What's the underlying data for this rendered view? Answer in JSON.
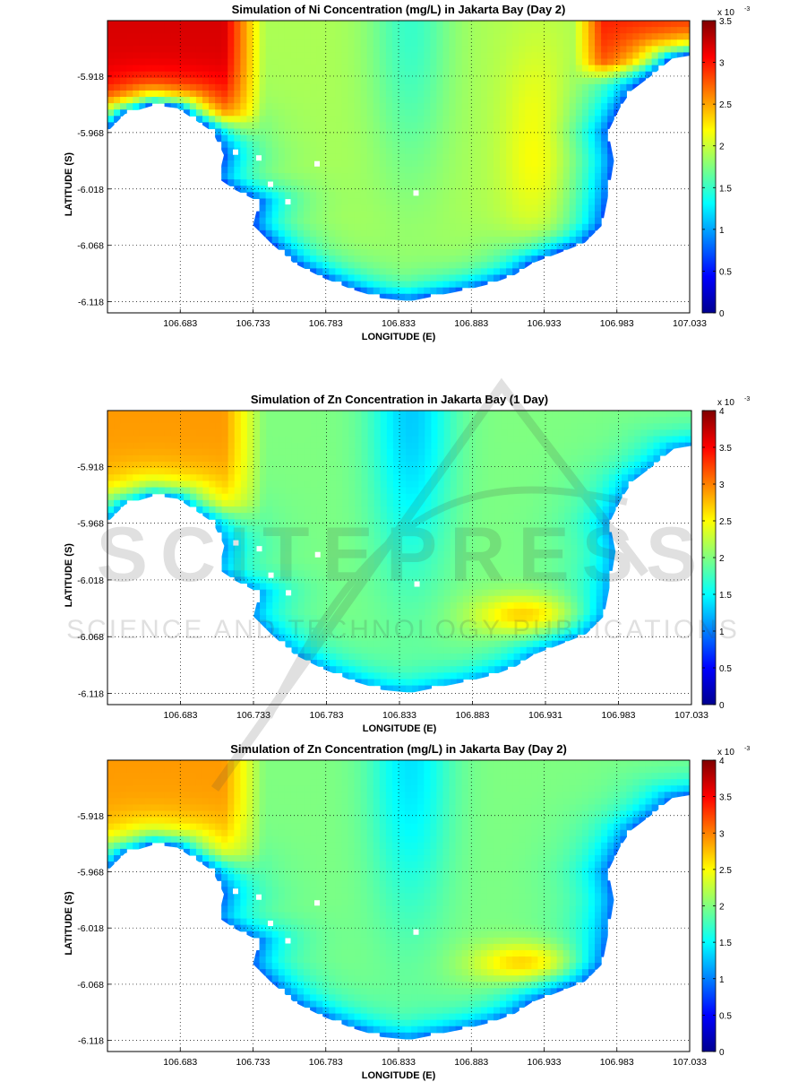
{
  "watermark": {
    "title": "SCITEPRESS",
    "subtitle": "SCIENCE AND TECHNOLOGY PUBLICATIONS"
  },
  "colors": {
    "jet": [
      "#00008f",
      "#0000ff",
      "#0080ff",
      "#00ffff",
      "#80ff80",
      "#ffff00",
      "#ff8000",
      "#ff0000",
      "#800000"
    ],
    "land": "#ffffff",
    "grid": "#000000"
  },
  "chart_data": [
    {
      "type": "heatmap",
      "title": "Simulation of Ni Concentration (mg/L) in Jakarta Bay (Day 2)",
      "xlabel": "LONGITUDE (E)",
      "ylabel": "LATITUDE (S)",
      "xticks": [
        "106.683",
        "106.733",
        "106.783",
        "106.833",
        "106.883",
        "106.933",
        "106.983",
        "107.033"
      ],
      "yticks": [
        "-5.918",
        "-5.968",
        "-6.018",
        "-6.068",
        "-6.118"
      ],
      "xlim": [
        106.633,
        107.033
      ],
      "ylim": [
        -6.128,
        -5.868
      ],
      "grid": true,
      "colorbar": {
        "min": 0,
        "max": 3.5,
        "ticks": [
          "0",
          "0.5",
          "1",
          "1.5",
          "2",
          "2.5",
          "3",
          "3.5"
        ],
        "exponent": "x 10",
        "exponent_power": "-3"
      },
      "field": {
        "west_plume": 3.2,
        "east_plume": 3.0,
        "central_strip": 1.5,
        "open_sea": 1.9,
        "coastal_band": 0.7,
        "east_yellow_tongue": 2.4
      }
    },
    {
      "type": "heatmap",
      "title": "Simulation of Zn Concentration in Jakarta Bay (1 Day)",
      "xlabel": "LONGITUDE (E)",
      "ylabel": "LATITUDE (S)",
      "xticks": [
        "106.683",
        "106.733",
        "106.783",
        "106.833",
        "106.883",
        "106.931",
        "106.983",
        "107.033"
      ],
      "yticks": [
        "-5.918",
        "-5.968",
        "-6.018",
        "-6.068",
        "-6.118"
      ],
      "xlim": [
        106.633,
        107.033
      ],
      "ylim": [
        -6.128,
        -5.868
      ],
      "grid": true,
      "colorbar": {
        "min": 0,
        "max": 4,
        "ticks": [
          "0",
          "0.5",
          "1",
          "1.5",
          "2",
          "2.5",
          "3",
          "3.5",
          "4"
        ],
        "exponent": "x 10",
        "exponent_power": "-3"
      },
      "field": {
        "west_plume": 2.9,
        "central_strip": 1.3,
        "open_sea": 2.0,
        "coastal_band": 1.1,
        "southeast_hotspot": 2.8
      }
    },
    {
      "type": "heatmap",
      "title": "Simulation of Zn Concentration (mg/L) in Jakarta Bay (Day 2)",
      "xlabel": "LONGITUDE (E)",
      "ylabel": "LATITUDE (S)",
      "xticks": [
        "106.683",
        "106.733",
        "106.783",
        "106.833",
        "106.883",
        "106.933",
        "106.983",
        "107.033"
      ],
      "yticks": [
        "-5.918",
        "-5.968",
        "-6.018",
        "-6.068",
        "-6.118"
      ],
      "xlim": [
        106.633,
        107.033
      ],
      "ylim": [
        -6.128,
        -5.868
      ],
      "grid": true,
      "colorbar": {
        "min": 0,
        "max": 4,
        "ticks": [
          "0",
          "0.5",
          "1",
          "1.5",
          "2",
          "2.5",
          "3",
          "3.5",
          "4"
        ],
        "exponent": "x 10",
        "exponent_power": "-3"
      },
      "field": {
        "west_plume": 2.9,
        "central_strip": 1.4,
        "open_sea": 2.0,
        "coastal_band": 0.9,
        "southeast_hotspot": 2.8
      }
    }
  ]
}
